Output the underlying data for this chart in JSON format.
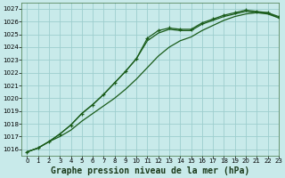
{
  "title": "Graphe pression niveau de la mer (hPa)",
  "background_color": "#c8eaea",
  "grid_color": "#9ecece",
  "line_color": "#1a5c1a",
  "xlim": [
    -0.5,
    23
  ],
  "ylim": [
    1015.5,
    1027.5
  ],
  "yticks": [
    1016,
    1017,
    1018,
    1019,
    1020,
    1021,
    1022,
    1023,
    1024,
    1025,
    1026,
    1027
  ],
  "xticks": [
    0,
    1,
    2,
    3,
    4,
    5,
    6,
    7,
    8,
    9,
    10,
    11,
    12,
    13,
    14,
    15,
    16,
    17,
    18,
    19,
    20,
    21,
    22,
    23
  ],
  "x": [
    0,
    1,
    2,
    3,
    4,
    5,
    6,
    7,
    8,
    9,
    10,
    11,
    12,
    13,
    14,
    15,
    16,
    17,
    18,
    19,
    20,
    21,
    22,
    23
  ],
  "y_steep": [
    1015.8,
    1016.1,
    1016.6,
    1017.2,
    1017.9,
    1018.8,
    1019.5,
    1020.3,
    1021.2,
    1022.1,
    1023.1,
    1024.7,
    1025.3,
    1025.5,
    1025.4,
    1025.4,
    1025.9,
    1026.2,
    1026.5,
    1026.7,
    1026.9,
    1026.8,
    1026.7,
    1026.4
  ],
  "y_mid": [
    1015.8,
    1016.1,
    1016.6,
    1017.2,
    1017.9,
    1018.8,
    1019.5,
    1020.3,
    1021.2,
    1022.1,
    1023.1,
    1024.5,
    1025.1,
    1025.4,
    1025.3,
    1025.3,
    1025.8,
    1026.1,
    1026.4,
    1026.6,
    1026.8,
    1026.7,
    1026.6,
    1026.3
  ],
  "y_gradual": [
    1015.8,
    1016.1,
    1016.6,
    1017.0,
    1017.5,
    1018.2,
    1018.8,
    1019.4,
    1020.0,
    1020.7,
    1021.5,
    1022.4,
    1023.3,
    1024.0,
    1024.5,
    1024.8,
    1025.3,
    1025.7,
    1026.1,
    1026.4,
    1026.6,
    1026.7,
    1026.7,
    1026.3
  ],
  "title_fontsize": 7,
  "tick_fontsize": 5
}
